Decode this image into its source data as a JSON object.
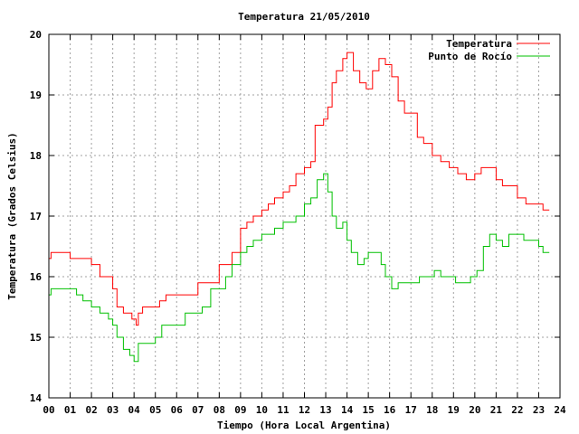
{
  "chart_data": {
    "type": "line",
    "title": "Temperatura 21/05/2010",
    "xlabel": "Tiempo (Hora Local Argentina)",
    "ylabel": "Temperatura (Grados Celsius)",
    "xlim": [
      0,
      24
    ],
    "ylim": [
      14,
      20
    ],
    "xticks": [
      "00",
      "01",
      "02",
      "03",
      "04",
      "05",
      "06",
      "07",
      "08",
      "09",
      "10",
      "11",
      "12",
      "13",
      "14",
      "15",
      "16",
      "17",
      "18",
      "19",
      "20",
      "21",
      "22",
      "23",
      "24"
    ],
    "yticks": [
      "14",
      "15",
      "16",
      "17",
      "18",
      "19",
      "20"
    ],
    "grid": true,
    "legend": "top-right",
    "colors": {
      "temperatura": "#ff0000",
      "rocio": "#00c000"
    },
    "series": [
      {
        "name": "Temperatura",
        "color": "#ff0000",
        "x": [
          0,
          0.1,
          0.5,
          1.0,
          1.5,
          2.0,
          2.4,
          2.8,
          3.0,
          3.2,
          3.5,
          3.9,
          4.1,
          4.2,
          4.4,
          4.6,
          4.9,
          5.2,
          5.5,
          6.0,
          6.5,
          7.0,
          7.5,
          8.0,
          8.3,
          8.6,
          9.0,
          9.3,
          9.6,
          10.0,
          10.3,
          10.6,
          11.0,
          11.3,
          11.6,
          12.0,
          12.3,
          12.5,
          12.9,
          13.1,
          13.3,
          13.5,
          13.8,
          14.0,
          14.3,
          14.6,
          14.9,
          15.2,
          15.5,
          15.8,
          16.1,
          16.4,
          16.7,
          17.0,
          17.3,
          17.6,
          18.0,
          18.4,
          18.8,
          19.2,
          19.6,
          20.0,
          20.3,
          20.6,
          21.0,
          21.3,
          21.7,
          22.0,
          22.4,
          22.8,
          23.2,
          23.5
        ],
        "values": [
          16.3,
          16.4,
          16.4,
          16.3,
          16.3,
          16.2,
          16.0,
          16.0,
          15.8,
          15.5,
          15.4,
          15.3,
          15.2,
          15.4,
          15.5,
          15.5,
          15.5,
          15.6,
          15.7,
          15.7,
          15.7,
          15.9,
          15.9,
          16.2,
          16.2,
          16.4,
          16.8,
          16.9,
          17.0,
          17.1,
          17.2,
          17.3,
          17.4,
          17.5,
          17.7,
          17.8,
          17.9,
          18.5,
          18.6,
          18.8,
          19.2,
          19.4,
          19.6,
          19.7,
          19.4,
          19.2,
          19.1,
          19.4,
          19.6,
          19.5,
          19.3,
          18.9,
          18.7,
          18.7,
          18.3,
          18.2,
          18.0,
          17.9,
          17.8,
          17.7,
          17.6,
          17.7,
          17.8,
          17.8,
          17.6,
          17.5,
          17.5,
          17.3,
          17.2,
          17.2,
          17.1,
          17.1
        ]
      },
      {
        "name": "Punto de Rocío",
        "color": "#00c000",
        "x": [
          0,
          0.1,
          0.5,
          1.0,
          1.3,
          1.6,
          2.0,
          2.4,
          2.8,
          3.0,
          3.2,
          3.5,
          3.8,
          4.0,
          4.2,
          4.4,
          4.8,
          5.0,
          5.3,
          5.7,
          6.0,
          6.4,
          6.8,
          7.2,
          7.6,
          8.0,
          8.3,
          8.6,
          9.0,
          9.3,
          9.6,
          10.0,
          10.3,
          10.6,
          11.0,
          11.3,
          11.6,
          12.0,
          12.3,
          12.6,
          12.9,
          13.1,
          13.3,
          13.5,
          13.8,
          14.0,
          14.2,
          14.5,
          14.8,
          15.0,
          15.3,
          15.6,
          15.8,
          16.1,
          16.4,
          16.8,
          17.1,
          17.4,
          17.8,
          18.1,
          18.4,
          18.8,
          19.1,
          19.4,
          19.8,
          20.1,
          20.4,
          20.7,
          21.0,
          21.3,
          21.6,
          22.0,
          22.3,
          22.6,
          23.0,
          23.2,
          23.5
        ],
        "values": [
          15.7,
          15.8,
          15.8,
          15.8,
          15.7,
          15.6,
          15.5,
          15.4,
          15.3,
          15.2,
          15.0,
          14.8,
          14.7,
          14.6,
          14.9,
          14.9,
          14.9,
          15.0,
          15.2,
          15.2,
          15.2,
          15.4,
          15.4,
          15.5,
          15.8,
          15.8,
          16.0,
          16.2,
          16.4,
          16.5,
          16.6,
          16.7,
          16.7,
          16.8,
          16.9,
          16.9,
          17.0,
          17.2,
          17.3,
          17.6,
          17.7,
          17.4,
          17.0,
          16.8,
          16.9,
          16.6,
          16.4,
          16.2,
          16.3,
          16.4,
          16.4,
          16.2,
          16.0,
          15.8,
          15.9,
          15.9,
          15.9,
          16.0,
          16.0,
          16.1,
          16.0,
          16.0,
          15.9,
          15.9,
          16.0,
          16.1,
          16.5,
          16.7,
          16.6,
          16.5,
          16.7,
          16.7,
          16.6,
          16.6,
          16.5,
          16.4,
          16.4
        ]
      }
    ]
  }
}
